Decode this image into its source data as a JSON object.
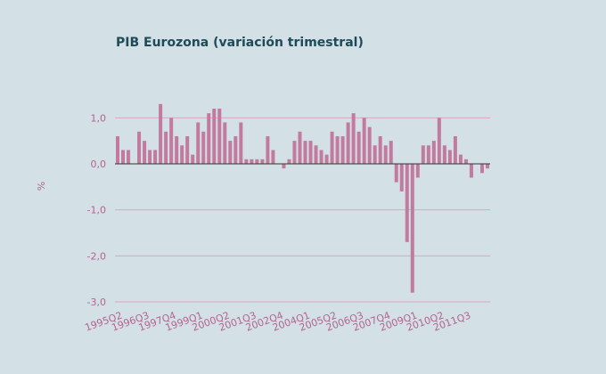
{
  "chart_data": {
    "type": "bar",
    "title": "PIB Eurozona (variación trimestral)",
    "y_label": "%",
    "categories": [
      "1995Q2",
      null,
      null,
      null,
      null,
      "1996Q3",
      null,
      null,
      null,
      null,
      "1997Q4",
      null,
      null,
      null,
      null,
      "1999Q1",
      null,
      null,
      null,
      null,
      "2000Q2",
      null,
      null,
      null,
      null,
      "2001Q3",
      null,
      null,
      null,
      null,
      "2002Q4",
      null,
      null,
      null,
      null,
      "2004Q1",
      null,
      null,
      null,
      null,
      "2005Q2",
      null,
      null,
      null,
      null,
      "2006Q3",
      null,
      null,
      null,
      null,
      "2007Q4",
      null,
      null,
      null,
      null,
      "2009Q1",
      null,
      null,
      null,
      null,
      "2010Q2",
      null,
      null,
      null,
      null,
      "2011Q3",
      null,
      null,
      null,
      null
    ],
    "values": [
      0.6,
      0.3,
      0.3,
      0.0,
      0.7,
      0.5,
      0.3,
      0.3,
      1.3,
      0.7,
      1.0,
      0.6,
      0.4,
      0.6,
      0.2,
      0.9,
      0.7,
      1.1,
      1.2,
      1.2,
      0.9,
      0.5,
      0.6,
      0.9,
      0.1,
      0.1,
      0.1,
      0.1,
      0.6,
      0.3,
      0.0,
      -0.1,
      0.1,
      0.5,
      0.7,
      0.5,
      0.5,
      0.4,
      0.3,
      0.2,
      0.7,
      0.6,
      0.6,
      0.9,
      1.1,
      0.7,
      1.0,
      0.8,
      0.4,
      0.6,
      0.4,
      0.5,
      -0.4,
      -0.6,
      -1.7,
      -2.8,
      -0.3,
      0.4,
      0.4,
      0.5,
      1.0,
      0.4,
      0.3,
      0.6,
      0.2,
      0.1,
      -0.3,
      0.0,
      -0.2,
      -0.1
    ],
    "color": "#c27a9f",
    "ylim": [
      -3,
      1.4
    ],
    "yticks": [
      {
        "value": -3,
        "label": "-3,0"
      },
      {
        "value": -2,
        "label": "-2,0"
      },
      {
        "value": -1,
        "label": "-1,0"
      },
      {
        "value": 0,
        "label": "0,0"
      },
      {
        "value": 1,
        "label": "1,0"
      }
    ],
    "grid": true
  }
}
